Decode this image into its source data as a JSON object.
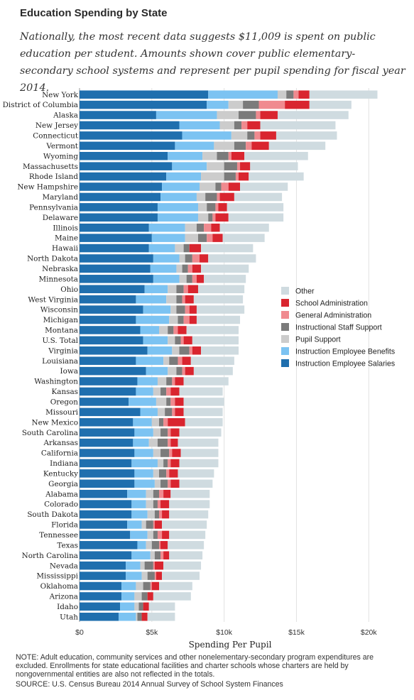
{
  "header": {
    "title": "Education Spending by State",
    "subtitle": "Nationally, the most recent data suggests $11,009 is spent on public education per student. Amounts shown cover public elementary-secondary school systems and represent per pupil spending for fiscal year 2014."
  },
  "footer": {
    "note": "NOTE: Adult education, community services and other nonelementary-secondary program expenditures are excluded. Enrollments for state educational facilities and charter schools whose charters are held by nongovernmental entities are also not reflected in the totals.",
    "source": "SOURCE: U.S. Census Bureau 2014 Annual Survey of School System Finances"
  },
  "chart_data": {
    "type": "bar",
    "orientation": "horizontal",
    "stacked": true,
    "xlabel": "Spending Per Pupil",
    "xlim": [
      0,
      22000
    ],
    "xticks": [
      0,
      5000,
      10000,
      15000,
      20000
    ],
    "xtick_labels": [
      "$0",
      "$5k",
      "$10k",
      "$15k",
      "$20k"
    ],
    "legend_position": "right",
    "grid": true,
    "legend_order": [
      "Other",
      "School Administration",
      "General Administration",
      "Instructional Staff Support",
      "Pupil Support",
      "Instruction Employee Benefits",
      "Instruction Employee Salaries"
    ],
    "series": [
      {
        "name": "Instruction Employee Salaries",
        "color": "#1f6fae"
      },
      {
        "name": "Instruction Employee Benefits",
        "color": "#7cc3f2"
      },
      {
        "name": "Pupil Support",
        "color": "#cccccc"
      },
      {
        "name": "Instructional Staff Support",
        "color": "#7b7b7b"
      },
      {
        "name": "General Administration",
        "color": "#f08a8f"
      },
      {
        "name": "School Administration",
        "color": "#d9252f"
      },
      {
        "name": "Other",
        "color": "#cfdbe0"
      }
    ],
    "categories": [
      "New York",
      "District of Columbia",
      "Alaska",
      "New Jersey",
      "Connecticut",
      "Vermont",
      "Wyoming",
      "Massachusetts",
      "Rhode Island",
      "New Hampshire",
      "Maryland",
      "Pennsylvania",
      "Delaware",
      "Illinois",
      "Maine",
      "Hawaii",
      "North Dakota",
      "Nebraska",
      "Minnesota",
      "Ohio",
      "West Virginia",
      "Wisconsin",
      "Michigan",
      "Montana",
      "U.S. Total",
      "Virginia",
      "Louisiana",
      "Iowa",
      "Washington",
      "Kansas",
      "Oregon",
      "Missouri",
      "New Mexico",
      "South Carolina",
      "Arkansas",
      "California",
      "Indiana",
      "Kentucky",
      "Georgia",
      "Alabama",
      "Colorado",
      "South Dakota",
      "Florida",
      "Tennessee",
      "Texas",
      "North Carolina",
      "Nevada",
      "Mississippi",
      "Oklahoma",
      "Arizona",
      "Idaho",
      "Utah"
    ],
    "values": [
      [
        8900,
        4800,
        600,
        500,
        350,
        750,
        4700
      ],
      [
        8800,
        1500,
        1000,
        1100,
        1800,
        1700,
        2900
      ],
      [
        5300,
        4200,
        1500,
        1200,
        300,
        1200,
        4900
      ],
      [
        6900,
        2800,
        1000,
        500,
        400,
        900,
        5200
      ],
      [
        7100,
        3400,
        1100,
        500,
        400,
        1100,
        4200
      ],
      [
        6600,
        2700,
        1400,
        800,
        400,
        1200,
        3900
      ],
      [
        6100,
        2400,
        1000,
        800,
        200,
        900,
        4400
      ],
      [
        6400,
        2400,
        1200,
        900,
        200,
        700,
        3300
      ],
      [
        6000,
        2400,
        1600,
        800,
        200,
        700,
        3800
      ],
      [
        5700,
        2600,
        1100,
        400,
        500,
        800,
        3300
      ],
      [
        5600,
        2500,
        600,
        800,
        200,
        1000,
        3300
      ],
      [
        5400,
        2800,
        600,
        600,
        200,
        600,
        3900
      ],
      [
        5400,
        2800,
        700,
        300,
        200,
        900,
        3800
      ],
      [
        4800,
        2500,
        800,
        500,
        500,
        600,
        3400
      ],
      [
        5000,
        2300,
        900,
        600,
        400,
        700,
        2900
      ],
      [
        4800,
        1800,
        600,
        400,
        0,
        800,
        3600
      ],
      [
        5100,
        1800,
        400,
        500,
        500,
        600,
        3300
      ],
      [
        4900,
        1800,
        400,
        400,
        300,
        600,
        3300
      ],
      [
        5100,
        1800,
        500,
        400,
        300,
        500,
        2900
      ],
      [
        4500,
        1600,
        600,
        500,
        300,
        700,
        3200
      ],
      [
        3900,
        2100,
        700,
        400,
        200,
        600,
        3400
      ],
      [
        4400,
        1900,
        400,
        600,
        300,
        500,
        3300
      ],
      [
        3900,
        2300,
        600,
        400,
        400,
        500,
        3000
      ],
      [
        4200,
        1300,
        600,
        400,
        300,
        600,
        3600
      ],
      [
        4400,
        1700,
        500,
        400,
        200,
        600,
        3200
      ],
      [
        4700,
        1700,
        500,
        700,
        200,
        600,
        2600
      ],
      [
        3900,
        1900,
        400,
        600,
        300,
        600,
        3000
      ],
      [
        4600,
        1500,
        600,
        400,
        200,
        600,
        2700
      ],
      [
        4000,
        1400,
        600,
        400,
        200,
        600,
        3100
      ],
      [
        3900,
        1200,
        500,
        400,
        300,
        600,
        3000
      ],
      [
        3400,
        1900,
        700,
        300,
        300,
        600,
        2800
      ],
      [
        4200,
        1200,
        500,
        500,
        200,
        600,
        2700
      ],
      [
        3700,
        1300,
        500,
        300,
        300,
        1200,
        2600
      ],
      [
        3800,
        1300,
        500,
        500,
        200,
        600,
        2900
      ],
      [
        3700,
        1100,
        600,
        700,
        200,
        500,
        2800
      ],
      [
        3800,
        1300,
        500,
        600,
        200,
        600,
        2600
      ],
      [
        3600,
        1800,
        400,
        300,
        200,
        600,
        2700
      ],
      [
        3800,
        1300,
        400,
        500,
        200,
        600,
        2500
      ],
      [
        3800,
        1400,
        400,
        500,
        200,
        600,
        2300
      ],
      [
        3300,
        1300,
        500,
        400,
        300,
        500,
        2700
      ],
      [
        3600,
        1000,
        500,
        300,
        200,
        600,
        2800
      ],
      [
        3600,
        1100,
        500,
        300,
        200,
        500,
        2700
      ],
      [
        3300,
        1000,
        300,
        500,
        100,
        500,
        3100
      ],
      [
        3500,
        1200,
        400,
        300,
        300,
        500,
        2500
      ],
      [
        4000,
        600,
        400,
        500,
        100,
        500,
        2500
      ],
      [
        3600,
        1300,
        300,
        400,
        200,
        400,
        2300
      ],
      [
        3200,
        1000,
        300,
        600,
        100,
        600,
        2600
      ],
      [
        3200,
        1100,
        400,
        500,
        100,
        400,
        2600
      ],
      [
        2900,
        1000,
        500,
        500,
        100,
        500,
        2300
      ],
      [
        2900,
        900,
        500,
        400,
        0,
        400,
        2600
      ],
      [
        2800,
        1000,
        300,
        300,
        0,
        400,
        1800
      ],
      [
        2700,
        1200,
        100,
        300,
        0,
        400,
        1900
      ]
    ]
  }
}
